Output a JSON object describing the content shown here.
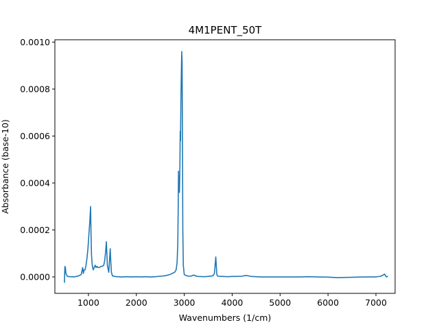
{
  "chart_data": {
    "type": "line",
    "title": "4M1PENT_50T",
    "xlabel": "Wavenumbers (1/cm)",
    "ylabel": "Absorbance (base-10)",
    "xlim": [
      300,
      7400
    ],
    "ylim": [
      -7e-05,
      0.00101
    ],
    "grid": false,
    "legend": "none",
    "x_ticks": [
      1000,
      2000,
      3000,
      4000,
      5000,
      6000,
      7000
    ],
    "x_tick_labels": [
      "1000",
      "2000",
      "3000",
      "4000",
      "5000",
      "6000",
      "7000"
    ],
    "y_ticks": [
      0.0,
      0.0002,
      0.0004,
      0.0006,
      0.0008,
      0.001
    ],
    "y_tick_labels": [
      "0.0000",
      "0.0002",
      "0.0004",
      "0.0006",
      "0.0008",
      "0.0010"
    ],
    "series": [
      {
        "color": "#1f77b4",
        "points": [
          [
            500,
            -2.5e-05
          ],
          [
            505,
            2e-05
          ],
          [
            510,
            4.5e-05
          ],
          [
            515,
            2e-05
          ],
          [
            520,
            4e-05
          ],
          [
            530,
            1.5e-05
          ],
          [
            545,
            8e-06
          ],
          [
            560,
            3e-06
          ],
          [
            600,
            1e-06
          ],
          [
            650,
            1e-06
          ],
          [
            700,
            0.0
          ],
          [
            750,
            2e-06
          ],
          [
            800,
            5e-06
          ],
          [
            850,
            1e-05
          ],
          [
            880,
            4e-05
          ],
          [
            895,
            1.5e-05
          ],
          [
            910,
            3e-05
          ],
          [
            930,
            3e-05
          ],
          [
            950,
            5e-05
          ],
          [
            970,
            8e-05
          ],
          [
            990,
            0.00012
          ],
          [
            1010,
            0.00018
          ],
          [
            1030,
            0.00024
          ],
          [
            1045,
            0.0003
          ],
          [
            1055,
            0.00018
          ],
          [
            1065,
            9e-05
          ],
          [
            1080,
            5e-05
          ],
          [
            1100,
            3e-05
          ],
          [
            1120,
            4e-05
          ],
          [
            1140,
            5e-05
          ],
          [
            1160,
            4e-05
          ],
          [
            1180,
            4.5e-05
          ],
          [
            1200,
            4e-05
          ],
          [
            1230,
            4e-05
          ],
          [
            1260,
            4.5e-05
          ],
          [
            1290,
            4.5e-05
          ],
          [
            1320,
            5e-05
          ],
          [
            1340,
            7e-05
          ],
          [
            1360,
            0.00011
          ],
          [
            1375,
            0.00015
          ],
          [
            1385,
            0.0001
          ],
          [
            1395,
            5e-05
          ],
          [
            1410,
            3.5e-05
          ],
          [
            1425,
            2e-05
          ],
          [
            1440,
            7e-05
          ],
          [
            1455,
            0.00012
          ],
          [
            1468,
            6e-05
          ],
          [
            1480,
            2e-05
          ],
          [
            1500,
            5e-06
          ],
          [
            1550,
            2e-06
          ],
          [
            1600,
            1e-06
          ],
          [
            1700,
            0.0
          ],
          [
            1800,
            1e-06
          ],
          [
            1900,
            0.0
          ],
          [
            2000,
            1e-06
          ],
          [
            2100,
            0.0
          ],
          [
            2200,
            1e-06
          ],
          [
            2300,
            0.0
          ],
          [
            2400,
            1e-06
          ],
          [
            2500,
            3e-06
          ],
          [
            2600,
            5e-06
          ],
          [
            2700,
            1e-05
          ],
          [
            2750,
            1.5e-05
          ],
          [
            2800,
            2e-05
          ],
          [
            2830,
            3e-05
          ],
          [
            2850,
            6e-05
          ],
          [
            2865,
            0.00014
          ],
          [
            2875,
            0.00032
          ],
          [
            2880,
            0.00045
          ],
          [
            2886,
            0.00038
          ],
          [
            2892,
            0.0004
          ],
          [
            2900,
            0.00036
          ],
          [
            2908,
            0.00045
          ],
          [
            2916,
            0.00062
          ],
          [
            2922,
            0.00058
          ],
          [
            2930,
            0.00075
          ],
          [
            2940,
            0.00088
          ],
          [
            2948,
            0.00096
          ],
          [
            2955,
            0.00091
          ],
          [
            2962,
            0.0006
          ],
          [
            2970,
            0.0002
          ],
          [
            2980,
            5e-05
          ],
          [
            3000,
            1e-05
          ],
          [
            3050,
            5e-06
          ],
          [
            3100,
            3e-06
          ],
          [
            3150,
            4e-06
          ],
          [
            3200,
            8e-06
          ],
          [
            3250,
            3e-06
          ],
          [
            3300,
            2e-06
          ],
          [
            3400,
            1e-06
          ],
          [
            3500,
            2e-06
          ],
          [
            3600,
            5e-06
          ],
          [
            3630,
            1.5e-05
          ],
          [
            3648,
            6e-05
          ],
          [
            3658,
            8.5e-05
          ],
          [
            3668,
            5e-05
          ],
          [
            3680,
            1e-05
          ],
          [
            3700,
            3e-06
          ],
          [
            3800,
            2e-06
          ],
          [
            3900,
            1e-06
          ],
          [
            4000,
            2e-06
          ],
          [
            4100,
            2e-06
          ],
          [
            4200,
            3e-06
          ],
          [
            4250,
            5e-06
          ],
          [
            4300,
            6e-06
          ],
          [
            4350,
            4e-06
          ],
          [
            4400,
            2e-06
          ],
          [
            4500,
            1e-06
          ],
          [
            4600,
            0.0
          ],
          [
            4700,
            0.0
          ],
          [
            4800,
            0.0
          ],
          [
            5000,
            0.0
          ],
          [
            5200,
            0.0
          ],
          [
            5400,
            0.0
          ],
          [
            5600,
            1e-06
          ],
          [
            5800,
            0.0
          ],
          [
            6000,
            -1e-06
          ],
          [
            6200,
            -3e-06
          ],
          [
            6400,
            -2e-06
          ],
          [
            6600,
            -1e-06
          ],
          [
            6800,
            0.0
          ],
          [
            7000,
            0.0
          ],
          [
            7100,
            3e-06
          ],
          [
            7150,
            8e-06
          ],
          [
            7180,
            1.2e-05
          ],
          [
            7200,
            5e-06
          ],
          [
            7220,
            0.0
          ],
          [
            7240,
            2e-06
          ],
          [
            7250,
            1e-06
          ]
        ]
      }
    ]
  }
}
